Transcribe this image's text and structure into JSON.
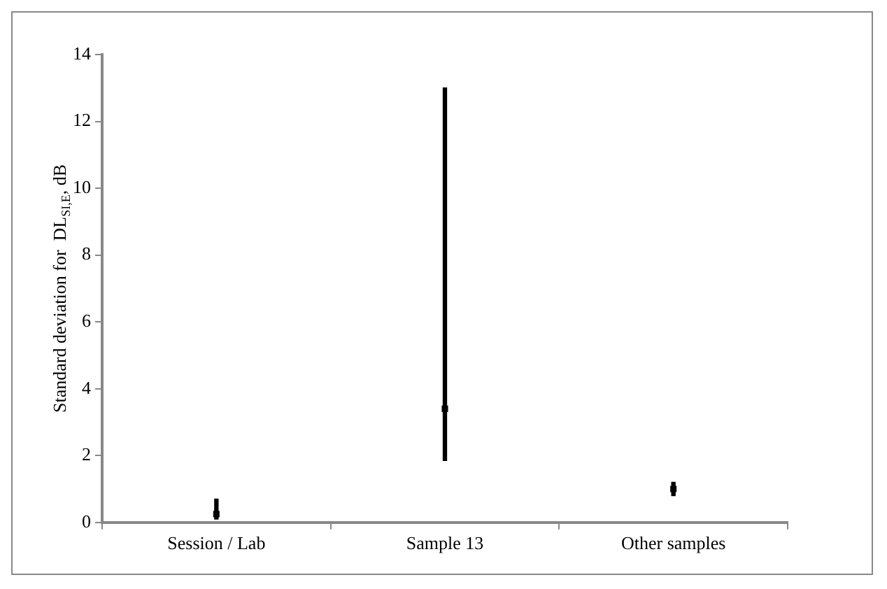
{
  "chart_data": {
    "type": "bar",
    "ylabel": "Standard deviation for  DL$_{SI,E}$, dB",
    "categories": [
      "Session / Lab",
      "Sample 13",
      "Other samples"
    ],
    "series": [
      {
        "color": "#000000",
        "values": [
          0.6,
          11.15,
          0.4
        ],
        "base": [
          0.1,
          1.85,
          0.8
        ]
      },
      {
        "type": "scatter",
        "color": "#000000",
        "x": [
          "Session / Lab",
          "Sample 13",
          "Other samples"
        ],
        "values": [
          0.25,
          3.4,
          1.0
        ],
        "marker": "square"
      }
    ],
    "ylim": [
      0,
      14
    ],
    "yticks": [
      0,
      2,
      4,
      6,
      8,
      10,
      12,
      14
    ]
  }
}
